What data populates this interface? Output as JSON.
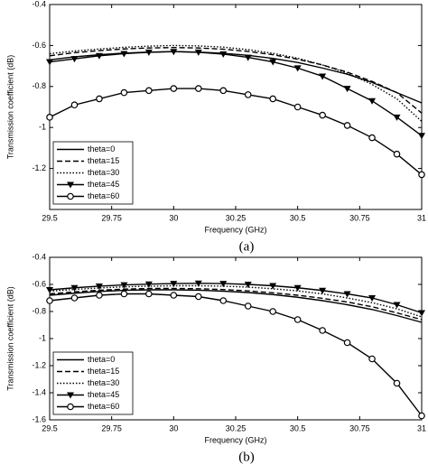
{
  "chart_data": [
    {
      "type": "line",
      "xlabel": "Frequency (GHz)",
      "ylabel": "Transmission coefficient (dB)",
      "caption": "(a)",
      "x": [
        29.5,
        29.6,
        29.7,
        29.8,
        29.9,
        30,
        30.1,
        30.2,
        30.3,
        30.4,
        30.5,
        30.6,
        30.7,
        30.8,
        30.9,
        31
      ],
      "xlim": [
        29.5,
        31
      ],
      "xticks": [
        29.5,
        29.75,
        30,
        30.25,
        30.5,
        30.75,
        31
      ],
      "ylim": [
        -1.4,
        -0.4
      ],
      "yticks": [
        -1.2,
        -1,
        -0.8,
        -0.6,
        -0.4
      ],
      "legend": "lower left",
      "grid": false,
      "series": [
        {
          "name": "theta=0",
          "color": "#000000",
          "dash": "solid",
          "marker": "none",
          "values": [
            -0.67,
            -0.655,
            -0.645,
            -0.637,
            -0.632,
            -0.63,
            -0.632,
            -0.638,
            -0.648,
            -0.663,
            -0.683,
            -0.71,
            -0.74,
            -0.78,
            -0.83,
            -0.88
          ]
        },
        {
          "name": "theta=15",
          "color": "#000000",
          "dash": "dashed",
          "marker": "none",
          "values": [
            -0.65,
            -0.635,
            -0.625,
            -0.617,
            -0.612,
            -0.61,
            -0.612,
            -0.618,
            -0.629,
            -0.645,
            -0.667,
            -0.695,
            -0.73,
            -0.775,
            -0.83,
            -0.93
          ]
        },
        {
          "name": "theta=30",
          "color": "#000000",
          "dash": "dotted",
          "marker": "none",
          "values": [
            -0.64,
            -0.627,
            -0.617,
            -0.609,
            -0.603,
            -0.6,
            -0.602,
            -0.608,
            -0.62,
            -0.638,
            -0.662,
            -0.695,
            -0.735,
            -0.79,
            -0.86,
            -0.97
          ]
        },
        {
          "name": "theta=45",
          "color": "#000000",
          "dash": "solid",
          "marker": "triangle-down",
          "values": [
            -0.68,
            -0.665,
            -0.65,
            -0.64,
            -0.633,
            -0.63,
            -0.633,
            -0.642,
            -0.658,
            -0.68,
            -0.71,
            -0.75,
            -0.81,
            -0.87,
            -0.95,
            -1.04
          ]
        },
        {
          "name": "theta=60",
          "color": "#000000",
          "dash": "solid",
          "marker": "circle",
          "values": [
            -0.95,
            -0.89,
            -0.86,
            -0.83,
            -0.82,
            -0.81,
            -0.81,
            -0.82,
            -0.84,
            -0.86,
            -0.9,
            -0.94,
            -0.99,
            -1.05,
            -1.13,
            -1.23
          ]
        }
      ]
    },
    {
      "type": "line",
      "xlabel": "Frequency (GHz)",
      "ylabel": "Transmission coefficient (dB)",
      "caption": "(b)",
      "x": [
        29.5,
        29.6,
        29.7,
        29.8,
        29.9,
        30,
        30.1,
        30.2,
        30.3,
        30.4,
        30.5,
        30.6,
        30.7,
        30.8,
        30.9,
        31
      ],
      "xlim": [
        29.5,
        31
      ],
      "xticks": [
        29.5,
        29.75,
        30,
        30.25,
        30.5,
        30.75,
        31
      ],
      "ylim": [
        -1.6,
        -0.4
      ],
      "yticks": [
        -1.6,
        -1.4,
        -1.2,
        -1,
        -0.8,
        -0.6,
        -0.4
      ],
      "legend": "lower left",
      "grid": false,
      "series": [
        {
          "name": "theta=0",
          "color": "#000000",
          "dash": "solid",
          "marker": "none",
          "values": [
            -0.68,
            -0.665,
            -0.652,
            -0.644,
            -0.64,
            -0.64,
            -0.643,
            -0.65,
            -0.66,
            -0.675,
            -0.695,
            -0.72,
            -0.75,
            -0.785,
            -0.83,
            -0.88
          ]
        },
        {
          "name": "theta=15",
          "color": "#000000",
          "dash": "dashed",
          "marker": "none",
          "values": [
            -0.67,
            -0.655,
            -0.643,
            -0.635,
            -0.63,
            -0.63,
            -0.632,
            -0.638,
            -0.648,
            -0.662,
            -0.68,
            -0.703,
            -0.73,
            -0.765,
            -0.81,
            -0.86
          ]
        },
        {
          "name": "theta=30",
          "color": "#000000",
          "dash": "dotted",
          "marker": "none",
          "values": [
            -0.65,
            -0.637,
            -0.626,
            -0.618,
            -0.613,
            -0.61,
            -0.61,
            -0.613,
            -0.62,
            -0.632,
            -0.648,
            -0.67,
            -0.7,
            -0.735,
            -0.78,
            -0.84
          ]
        },
        {
          "name": "theta=45",
          "color": "#000000",
          "dash": "solid",
          "marker": "triangle-down",
          "values": [
            -0.64,
            -0.625,
            -0.613,
            -0.604,
            -0.598,
            -0.594,
            -0.592,
            -0.594,
            -0.6,
            -0.61,
            -0.625,
            -0.645,
            -0.67,
            -0.7,
            -0.75,
            -0.81
          ]
        },
        {
          "name": "theta=60",
          "color": "#000000",
          "dash": "solid",
          "marker": "circle",
          "values": [
            -0.72,
            -0.7,
            -0.68,
            -0.67,
            -0.67,
            -0.68,
            -0.69,
            -0.72,
            -0.76,
            -0.8,
            -0.86,
            -0.94,
            -1.03,
            -1.15,
            -1.33,
            -1.57
          ]
        }
      ]
    }
  ]
}
